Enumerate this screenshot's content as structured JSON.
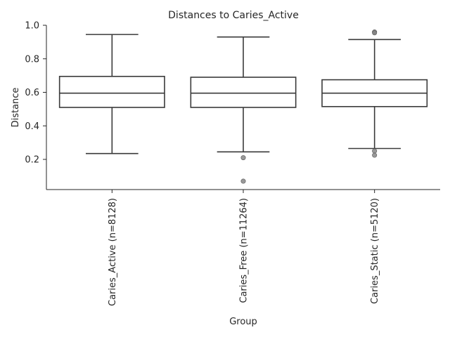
{
  "chart_data": {
    "type": "box",
    "title": "Distances to Caries_Active",
    "xlabel": "Group",
    "ylabel": "Distance",
    "ylim": [
      0.02,
      1.0
    ],
    "yticks": [
      "0.2",
      "0.4",
      "0.6",
      "0.8",
      "1.0"
    ],
    "ytick_values": [
      0.2,
      0.4,
      0.6,
      0.8,
      1.0
    ],
    "grid": false,
    "categories": [
      "Caries_Active (n=8128)",
      "Caries_Free (n=11264)",
      "Caries_Static (n=5120)"
    ],
    "boxes": [
      {
        "category": "Caries_Active (n=8128)",
        "whisker_low": 0.235,
        "q1": 0.51,
        "median": 0.595,
        "q3": 0.695,
        "whisker_high": 0.945,
        "outliers": []
      },
      {
        "category": "Caries_Free (n=11264)",
        "whisker_low": 0.245,
        "q1": 0.51,
        "median": 0.595,
        "q3": 0.69,
        "whisker_high": 0.93,
        "outliers": [
          0.21,
          0.07
        ]
      },
      {
        "category": "Caries_Static (n=5120)",
        "whisker_low": 0.265,
        "q1": 0.515,
        "median": 0.595,
        "q3": 0.675,
        "whisker_high": 0.915,
        "outliers": [
          0.96,
          0.955,
          0.25,
          0.225
        ]
      }
    ],
    "colors": {
      "box_edge": "#3a3a3a",
      "box_fill": "#ffffff",
      "flier": "#7f7f7f",
      "axis": "#262626"
    }
  }
}
